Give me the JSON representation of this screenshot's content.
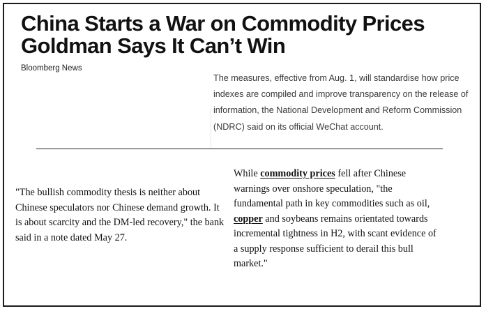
{
  "headline": "China Starts a War on Commodity Prices Goldman Says It Can’t Win",
  "byline": "Bloomberg News",
  "summary": "The measures, effective from Aug. 1, will standardise how price indexes are compiled and improve transparency on the release of information, the National Development and Reform Commission (NDRC) said on its official WeChat account.",
  "left_quote": "\"The bullish commodity thesis is neither about Chinese speculators nor Chinese demand growth. It is about scarcity and the DM-led recovery,\" the bank said in a note dated May 27.",
  "right_quote": {
    "part1": "While ",
    "link1": "commodity prices",
    "part2": " fell after Chinese warnings over onshore speculation, \"the fundamental path in key commodities such as oil, ",
    "link2": "copper",
    "part3": " and soybeans remains orientated towards incremental tightness in H2, with scant evidence of a supply response sufficient to derail this bull market.\""
  }
}
